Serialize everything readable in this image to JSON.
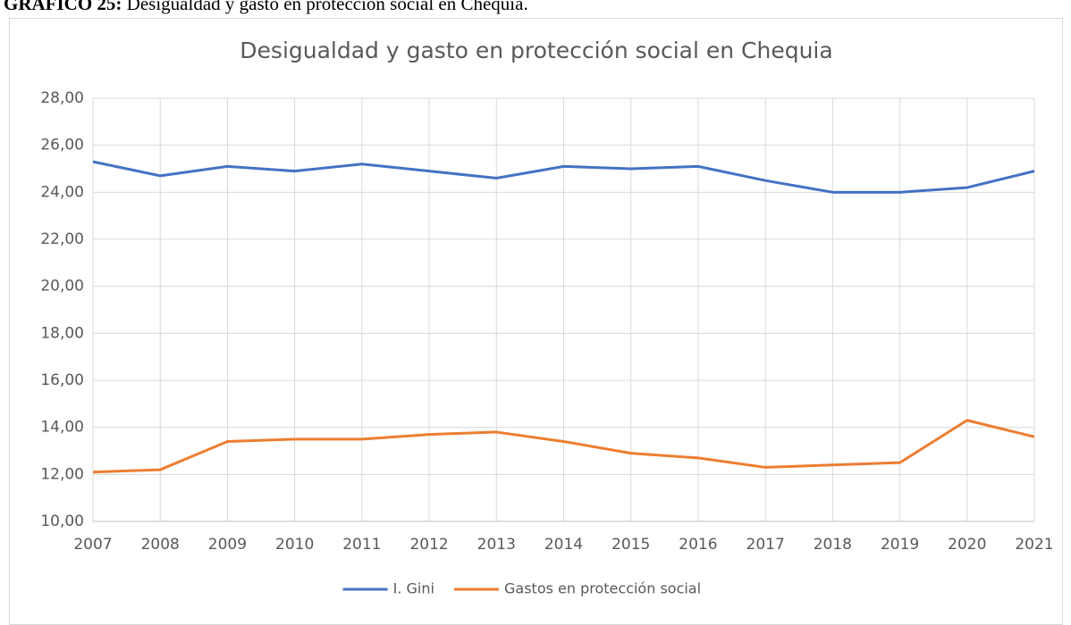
{
  "caption": {
    "label": "GRÁFICO 25:",
    "text": "Desigualdad y gasto en protección social en Chequia."
  },
  "chart_data": {
    "type": "line",
    "title": "Desigualdad y gasto en protección social en Chequia",
    "categories": [
      "2007",
      "2008",
      "2009",
      "2010",
      "2011",
      "2012",
      "2013",
      "2014",
      "2015",
      "2016",
      "2017",
      "2018",
      "2019",
      "2020",
      "2021"
    ],
    "series": [
      {
        "name": "I. Gini",
        "color": "#4472c4",
        "values": [
          25.3,
          24.7,
          25.1,
          24.9,
          25.2,
          24.9,
          24.6,
          25.1,
          25.0,
          25.1,
          24.5,
          24.0,
          24.0,
          24.2,
          24.9
        ]
      },
      {
        "name": "Gastos en protección social",
        "color": "#ed7d31",
        "values": [
          12.1,
          12.2,
          13.4,
          13.5,
          13.5,
          13.7,
          13.8,
          13.4,
          12.9,
          12.7,
          12.3,
          12.4,
          12.5,
          14.3,
          13.6
        ]
      }
    ],
    "ylim": [
      10,
      28
    ],
    "yticks": [
      {
        "value": 10,
        "label": "10,00"
      },
      {
        "value": 12,
        "label": "12,00"
      },
      {
        "value": 14,
        "label": "14,00"
      },
      {
        "value": 16,
        "label": "16,00"
      },
      {
        "value": 18,
        "label": "18,00"
      },
      {
        "value": 20,
        "label": "20,00"
      },
      {
        "value": 22,
        "label": "22,00"
      },
      {
        "value": 24,
        "label": "24,00"
      },
      {
        "value": 26,
        "label": "26,00"
      },
      {
        "value": 28,
        "label": "28,00"
      }
    ],
    "grid": true,
    "legend": "bottom"
  }
}
